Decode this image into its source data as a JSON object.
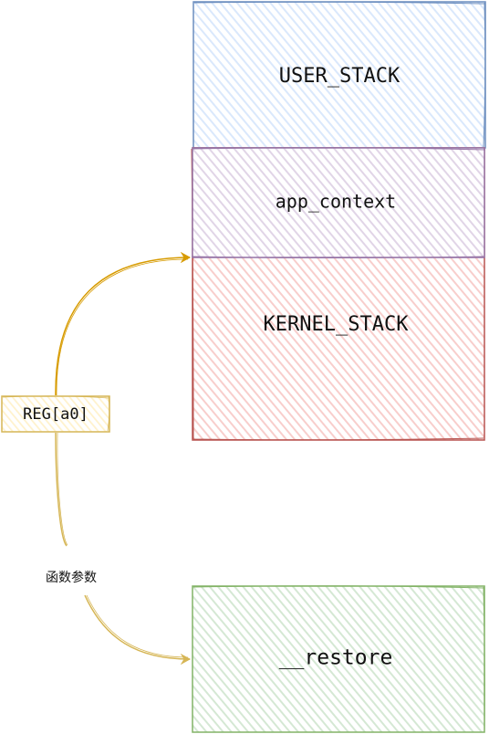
{
  "blocks": {
    "user_stack": {
      "label": "USER_STACK",
      "fill": "#dae8fc",
      "stroke": "#6c8ebf"
    },
    "app_context": {
      "label": "app_context",
      "fill": "#e1d5e7",
      "stroke": "#9673a6"
    },
    "kernel_stack": {
      "label": "KERNEL_STACK",
      "fill": "#f8cecc",
      "stroke": "#b85450"
    },
    "restore": {
      "label": "__restore",
      "fill": "#d5e8d4",
      "stroke": "#82b366"
    }
  },
  "register": {
    "label": "REG[a0]",
    "fill": "#fff2cc",
    "stroke": "#d6b656"
  },
  "edge_label": "函数参数",
  "arrow_colors": {
    "to_context": "#d79b00",
    "to_restore": "#d6b656"
  }
}
